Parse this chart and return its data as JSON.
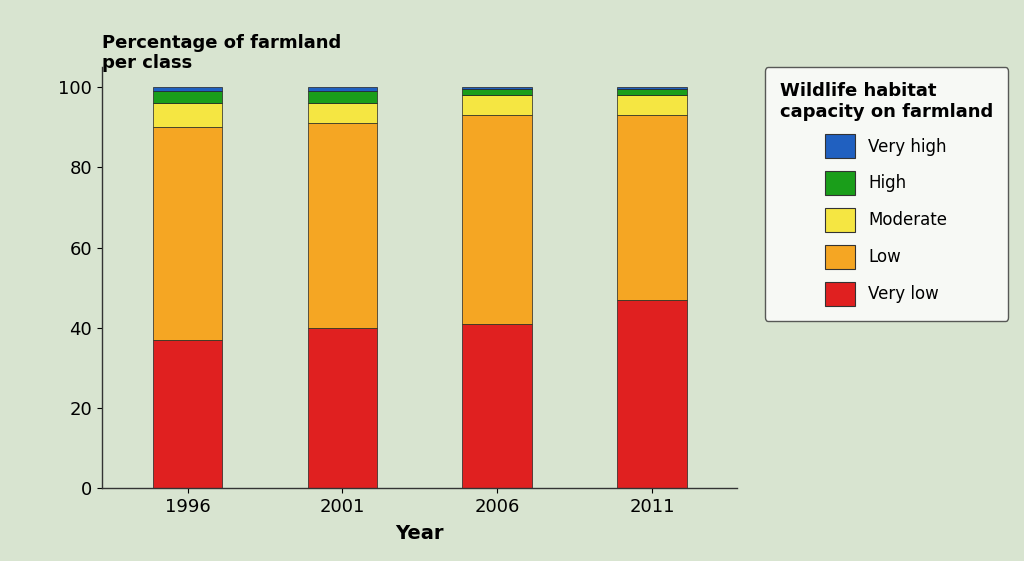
{
  "years": [
    "1996",
    "2001",
    "2006",
    "2011"
  ],
  "categories": [
    "Very low",
    "Low",
    "Moderate",
    "High",
    "Very high"
  ],
  "colors": [
    "#e02020",
    "#f5a623",
    "#f5e642",
    "#1a9e1a",
    "#2060c0"
  ],
  "values": {
    "Very low": [
      37,
      40,
      41,
      47
    ],
    "Low": [
      53,
      51,
      52,
      46
    ],
    "Moderate": [
      6,
      5,
      5,
      5
    ],
    "High": [
      3,
      3,
      1.5,
      1.5
    ],
    "Very high": [
      1,
      1,
      0.5,
      0.5
    ]
  },
  "ylabel": "Percentage of farmland\nper class",
  "xlabel": "Year",
  "legend_title": "Wildlife habitat\ncapacity on farmland",
  "ylim": [
    0,
    105
  ],
  "background_color": "#d8e4d0",
  "legend_order": [
    "Very high",
    "High",
    "Moderate",
    "Low",
    "Very low"
  ]
}
